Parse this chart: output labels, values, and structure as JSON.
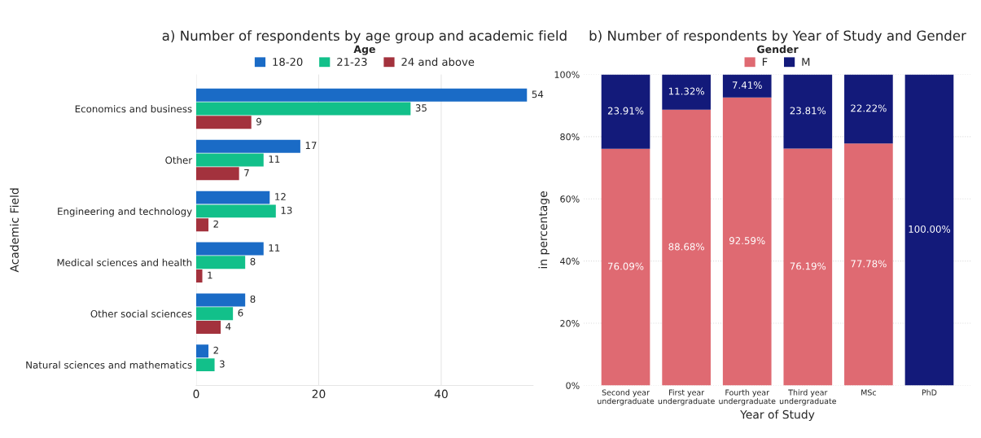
{
  "chart_data": [
    {
      "type": "bar",
      "orientation": "horizontal",
      "title": "a) Number of respondents by age group and academic field",
      "ylabel": "Academic Field",
      "legend_title": "Age",
      "legend": "top",
      "grid": "x",
      "data_labels": true,
      "categories": [
        "Economics and business",
        "Other",
        "Engineering and technology",
        "Medical sciences and health",
        "Other social sciences",
        "Natural sciences and mathematics"
      ],
      "xlim": [
        0,
        55
      ],
      "xticks": [
        0,
        20,
        40
      ],
      "series": [
        {
          "name": "18-20",
          "color": "#1a6bc6",
          "values": [
            54,
            17,
            12,
            11,
            8,
            2
          ]
        },
        {
          "name": "21-23",
          "color": "#12c08a",
          "values": [
            35,
            11,
            13,
            8,
            6,
            3
          ]
        },
        {
          "name": "24 and above",
          "color": "#a3323d",
          "values": [
            9,
            7,
            2,
            1,
            4,
            null
          ]
        }
      ]
    },
    {
      "type": "bar",
      "stacked": true,
      "title": "b) Number of respondents by Year of Study and Gender",
      "xlabel": "Year of Study",
      "ylabel": "in percentage",
      "legend_title": "Gender",
      "legend": "top",
      "grid": "y",
      "categories": [
        "Second year\nundergraduate",
        "First year\nundergraduate",
        "Fourth year\nundergraduate",
        "Third year\nundergraduate",
        "MSc",
        "PhD"
      ],
      "ylim": [
        0,
        100
      ],
      "yticks": [
        {
          "value": 0,
          "label": "0%"
        },
        {
          "value": 20,
          "label": "20%"
        },
        {
          "value": 40,
          "label": "40%"
        },
        {
          "value": 60,
          "label": "60%"
        },
        {
          "value": 80,
          "label": "80%"
        },
        {
          "value": 100,
          "label": "100%"
        }
      ],
      "series": [
        {
          "name": "F",
          "color": "#df6a72",
          "values": [
            76.09,
            88.68,
            92.59,
            76.19,
            77.78,
            0
          ],
          "value_labels": [
            "76.09%",
            "88.68%",
            "92.59%",
            "76.19%",
            "77.78%",
            null
          ]
        },
        {
          "name": "M",
          "color": "#131a7a",
          "values": [
            23.91,
            11.32,
            7.41,
            23.81,
            22.22,
            100
          ],
          "value_labels": [
            "23.91%",
            "11.32%",
            "7.41%",
            "23.81%",
            "22.22%",
            "100.00%"
          ]
        }
      ]
    }
  ]
}
